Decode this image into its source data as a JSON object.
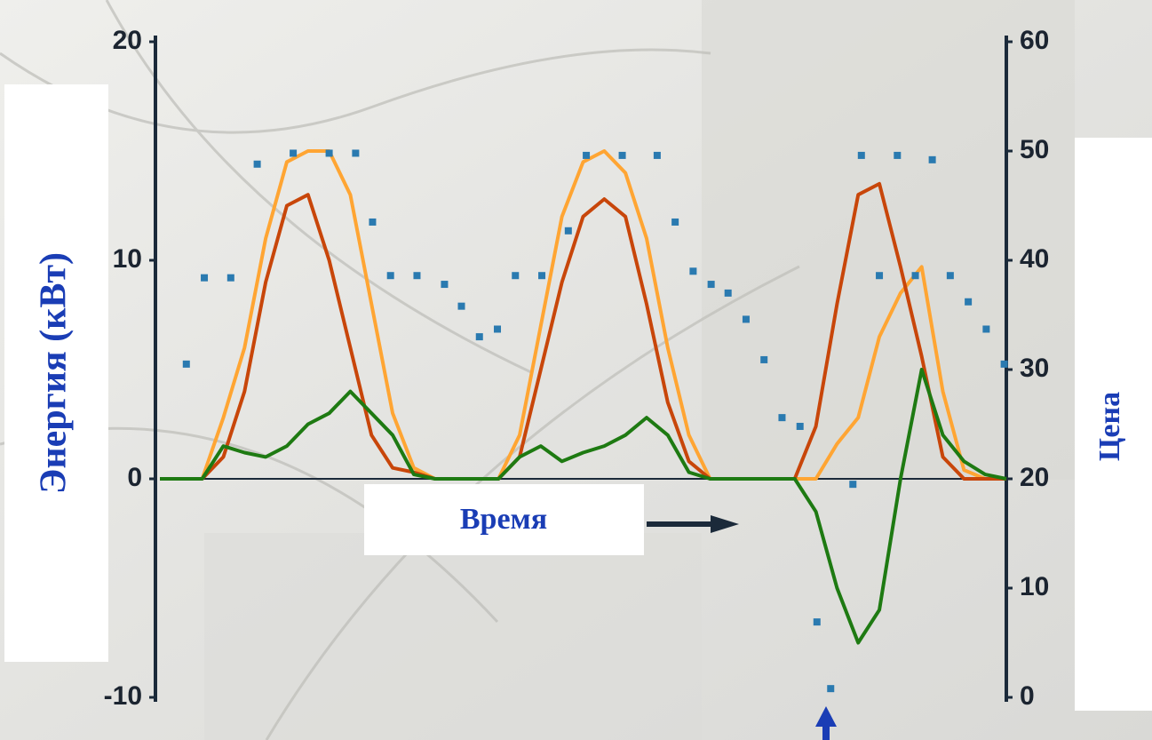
{
  "chart_data": {
    "type": "line",
    "y_label": "Энергия (кВт)",
    "y2_label": "Цена",
    "annotation": "Время",
    "x": [
      0,
      2,
      4,
      6,
      8,
      10,
      12,
      14,
      16,
      18,
      20,
      22,
      24,
      26,
      28,
      30,
      32,
      34,
      36,
      38,
      40,
      42,
      44,
      46,
      48,
      50,
      52,
      54,
      56,
      58,
      60,
      62,
      64,
      66,
      68,
      70,
      72,
      74,
      76,
      78,
      80
    ],
    "xlim": [
      0,
      80
    ],
    "ylim": [
      -10,
      20
    ],
    "yticks": [
      -10,
      0,
      10,
      20
    ],
    "y2lim": [
      0,
      60
    ],
    "y2ticks": [
      0,
      10,
      20,
      30,
      40,
      50,
      60
    ],
    "series": [
      {
        "color": "#ffa533",
        "values": [
          0,
          0,
          0,
          2.8,
          6,
          11,
          14.5,
          15,
          15,
          13,
          8,
          3,
          0.5,
          0,
          0,
          0,
          0,
          2,
          7,
          12,
          14.5,
          15,
          14,
          11,
          6,
          2,
          0,
          0,
          0,
          0,
          0,
          0,
          1.6,
          2.8,
          6.5,
          8.5,
          9.7,
          4,
          0.4,
          0,
          0
        ]
      },
      {
        "color": "#c8460a",
        "values": [
          0,
          0,
          0,
          1,
          4,
          9,
          12.5,
          13,
          10,
          6,
          2,
          0.5,
          0.3,
          0,
          0,
          0,
          0,
          1,
          5,
          9,
          12,
          12.8,
          12,
          8,
          3.5,
          0.8,
          0,
          0,
          0,
          0,
          0,
          2.4,
          8,
          13,
          13.5,
          9.7,
          5.6,
          1,
          0,
          0,
          0
        ]
      },
      {
        "color": "#1e7a12",
        "values": [
          0,
          0,
          0,
          1.5,
          1.2,
          1,
          1.5,
          2.5,
          3,
          4,
          3,
          2,
          0.2,
          0,
          0,
          0,
          0,
          1,
          1.5,
          0.8,
          1.2,
          1.5,
          2,
          2.8,
          2,
          0.3,
          0,
          0,
          0,
          0,
          0,
          -1.5,
          -5,
          -7.5,
          -6,
          0,
          5,
          2,
          0.8,
          0.2,
          0
        ]
      },
      {
        "type": "scatter",
        "axis": "y2",
        "color": "#2a7ab0",
        "x": [
          2.5,
          4.2,
          6.7,
          9.2,
          12.6,
          16,
          18.5,
          20.1,
          21.8,
          24.3,
          26.9,
          28.5,
          30.2,
          31.9,
          33.6,
          36.1,
          38.6,
          40.3,
          43.7,
          47,
          48.7,
          50.4,
          52.1,
          53.7,
          55.4,
          57.1,
          58.8,
          60.5,
          62.1,
          63.4,
          65.5,
          66.3,
          68,
          69.7,
          71.4,
          73,
          74.7,
          76.4,
          78.1,
          79.8
        ],
        "values": [
          30.5,
          38.4,
          38.4,
          48.8,
          49.8,
          49.8,
          49.8,
          43.5,
          38.6,
          38.6,
          37.8,
          35.8,
          33,
          33.7,
          38.6,
          38.6,
          42.7,
          49.6,
          49.6,
          49.6,
          43.5,
          39,
          37.8,
          37,
          34.6,
          30.9,
          25.6,
          24.8,
          6.9,
          0.8,
          19.5,
          49.6,
          38.6,
          49.6,
          38.6,
          49.2,
          38.6,
          36.2,
          33.7,
          30.5
        ]
      }
    ]
  }
}
